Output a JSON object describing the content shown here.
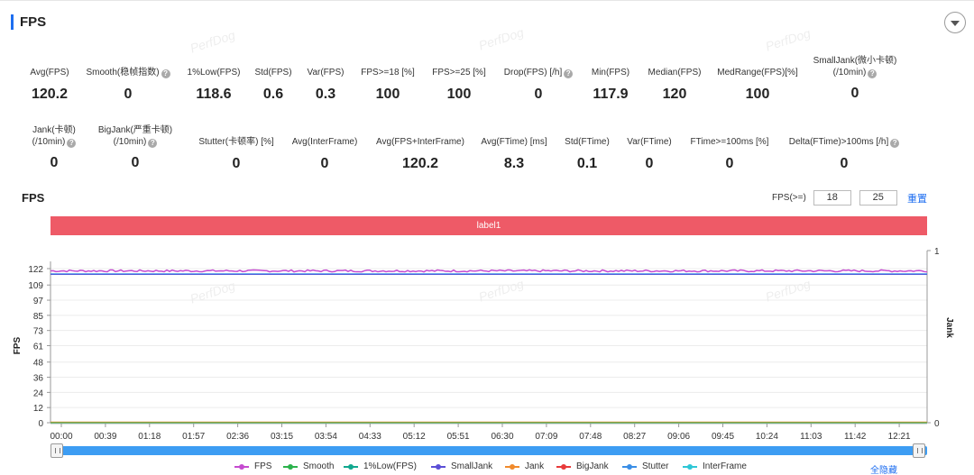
{
  "header": {
    "title": "FPS"
  },
  "metrics_row1": [
    {
      "label": "Avg(FPS)",
      "value": "120.2",
      "help": false
    },
    {
      "label": "Smooth(稳帧指数)",
      "value": "0",
      "help": true
    },
    {
      "label": "1%Low(FPS)",
      "value": "118.6",
      "help": false
    },
    {
      "label": "Std(FPS)",
      "value": "0.6",
      "help": false
    },
    {
      "label": "Var(FPS)",
      "value": "0.3",
      "help": false
    },
    {
      "label": "FPS>=18 [%]",
      "value": "100",
      "help": false
    },
    {
      "label": "FPS>=25 [%]",
      "value": "100",
      "help": false
    },
    {
      "label": "Drop(FPS) [/h]",
      "value": "0",
      "help": true
    },
    {
      "label": "Min(FPS)",
      "value": "117.9",
      "help": false
    },
    {
      "label": "Median(FPS)",
      "value": "120",
      "help": false
    },
    {
      "label": "MedRange(FPS)[%]",
      "value": "100",
      "help": false
    },
    {
      "label": "SmallJank(微小卡顿)",
      "label2": "(/10min)",
      "value": "0",
      "help": true
    }
  ],
  "metrics_row2": [
    {
      "label": "Jank(卡顿)",
      "label2": "(/10min)",
      "value": "0",
      "help": true
    },
    {
      "label": "BigJank(严重卡顿)",
      "label2": "(/10min)",
      "value": "0",
      "help": true
    },
    {
      "label": "Stutter(卡顿率) [%]",
      "value": "0",
      "help": false
    },
    {
      "label": "Avg(InterFrame)",
      "value": "0",
      "help": false
    },
    {
      "label": "Avg(FPS+InterFrame)",
      "value": "120.2",
      "help": false
    },
    {
      "label": "Avg(FTime) [ms]",
      "value": "8.3",
      "help": false
    },
    {
      "label": "Std(FTime)",
      "value": "0.1",
      "help": false
    },
    {
      "label": "Var(FTime)",
      "value": "0",
      "help": false
    },
    {
      "label": "FTime>=100ms [%]",
      "value": "0",
      "help": false
    },
    {
      "label": "Delta(FTime)>100ms [/h]",
      "value": "0",
      "help": true
    }
  ],
  "watermark": "PerfDog",
  "chart_section": {
    "title": "FPS",
    "threshold_label": "FPS(>=)",
    "threshold_1": "18",
    "threshold_2": "25",
    "reset_label": "重置",
    "label_band": "label1",
    "hide_all": "全隐藏"
  },
  "chart_data": {
    "type": "line",
    "ylabel": "FPS",
    "y2label": "Jank",
    "ylim": [
      0,
      122
    ],
    "y2lim": [
      0,
      1
    ],
    "yticks": [
      0,
      12,
      24,
      36,
      48,
      61,
      73,
      85,
      97,
      109,
      122
    ],
    "y2ticks": [
      0,
      1
    ],
    "xticks": [
      "00:00",
      "00:39",
      "01:18",
      "01:57",
      "02:36",
      "03:15",
      "03:54",
      "04:33",
      "05:12",
      "05:51",
      "06:30",
      "07:09",
      "07:48",
      "08:27",
      "09:06",
      "09:45",
      "10:24",
      "11:03",
      "11:42",
      "12:21"
    ],
    "series": [
      {
        "name": "FPS",
        "color": "#c54bd0",
        "approx_value": 120.2
      },
      {
        "name": "Smooth",
        "color": "#2bb24c",
        "approx_value": 0
      },
      {
        "name": "1%Low(FPS)",
        "color": "#11a88f",
        "approx_value": 118.6
      },
      {
        "name": "SmallJank",
        "color": "#5b4fd6",
        "approx_value": 0
      },
      {
        "name": "Jank",
        "color": "#f08a2c",
        "approx_value": 0
      },
      {
        "name": "BigJank",
        "color": "#e83a3a",
        "approx_value": 0
      },
      {
        "name": "Stutter",
        "color": "#3a8ee6",
        "approx_value": 0
      },
      {
        "name": "InterFrame",
        "color": "#2ec7d6",
        "approx_value": 0
      }
    ]
  }
}
